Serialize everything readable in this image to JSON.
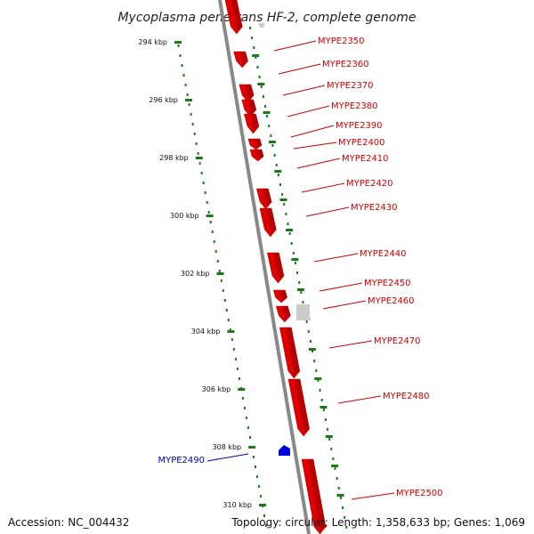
{
  "title": "Mycoplasma penetrans HF-2, complete genome",
  "accession": "Accession: NC_004432",
  "summary": "Topology: circular; Length: 1,358,633 bp; Genes: 1,069",
  "scale_labels": [
    "294 kbp",
    "296 kbp",
    "298 kbp",
    "300 kbp",
    "302 kbp",
    "304 kbp",
    "306 kbp",
    "308 kbp",
    "310 kbp"
  ],
  "colors": {
    "forward_gene": "#e00000",
    "other_gene": "#cccccc",
    "highlight_gene": "#0000dd",
    "ruler": "#1a7a1a",
    "backbone": "#888888"
  },
  "genes_right": [
    {
      "label": "MYPE2350"
    },
    {
      "label": "MYPE2360"
    },
    {
      "label": "MYPE2370"
    },
    {
      "label": "MYPE2380"
    },
    {
      "label": "MYPE2390"
    },
    {
      "label": "MYPE2400"
    },
    {
      "label": "MYPE2410"
    },
    {
      "label": "MYPE2420"
    },
    {
      "label": "MYPE2430"
    },
    {
      "label": "MYPE2440"
    },
    {
      "label": "MYPE2450"
    },
    {
      "label": "MYPE2460"
    },
    {
      "label": "MYPE2470"
    },
    {
      "label": "MYPE2480"
    },
    {
      "label": "MYPE2500"
    }
  ],
  "genes_left": [
    {
      "label": "MYPE2490"
    }
  ]
}
